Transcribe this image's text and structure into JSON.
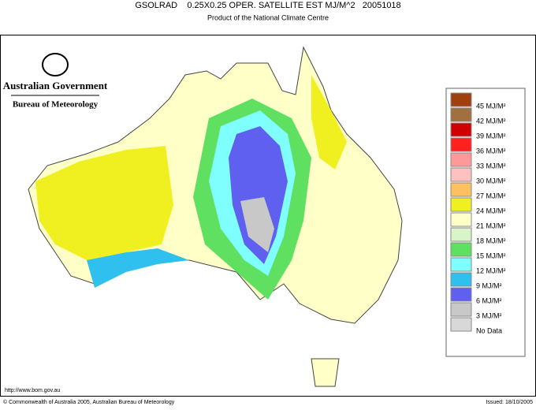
{
  "header": {
    "title": "GSOLRAD    0.25X0.25 OPER. SATELLITE EST MJ/M^2   20051018",
    "subtitle": "Product of the National Climate Centre"
  },
  "logo": {
    "line1": "Australian Government",
    "line2": "Bureau of Meteorology"
  },
  "legend": {
    "items": [
      {
        "label": "45 MJ/M²",
        "color": "#a04010"
      },
      {
        "label": "42 MJ/M²",
        "color": "#a07040"
      },
      {
        "label": "39 MJ/M²",
        "color": "#d00000"
      },
      {
        "label": "36 MJ/M²",
        "color": "#ff2020"
      },
      {
        "label": "33 MJ/M²",
        "color": "#ff9999"
      },
      {
        "label": "30 MJ/M²",
        "color": "#ffc0c0"
      },
      {
        "label": "27 MJ/M²",
        "color": "#ffc060"
      },
      {
        "label": "24 MJ/M²",
        "color": "#f0f020"
      },
      {
        "label": "21 MJ/M²",
        "color": "#ffffc8"
      },
      {
        "label": "18 MJ/M²",
        "color": "#d8f4c8"
      },
      {
        "label": "15 MJ/M²",
        "color": "#60e060"
      },
      {
        "label": "12 MJ/M²",
        "color": "#80ffff"
      },
      {
        "label": "9 MJ/M²",
        "color": "#30c0f0"
      },
      {
        "label": "6 MJ/M²",
        "color": "#6060f0"
      },
      {
        "label": "3 MJ/M²",
        "color": "#c8c8c8"
      },
      {
        "label": "No Data",
        "color": "#d8d8d8"
      }
    ]
  },
  "footer": {
    "url": "http://www.bom.gov.au",
    "copyright": "© Commonwealth of Australia 2005, Australian Bureau of Meteorology",
    "issued": "Issued: 18/10/2005"
  }
}
